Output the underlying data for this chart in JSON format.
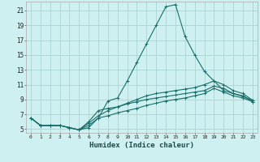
{
  "xlabel": "Humidex (Indice chaleur)",
  "bg_color": "#cff0f0",
  "grid_color": "#aad4d4",
  "line_color": "#1a6e6a",
  "xlim": [
    -0.5,
    23.5
  ],
  "ylim": [
    4.5,
    22.2
  ],
  "xticks": [
    0,
    1,
    2,
    3,
    4,
    5,
    6,
    7,
    8,
    9,
    10,
    11,
    12,
    13,
    14,
    15,
    16,
    17,
    18,
    19,
    20,
    21,
    22,
    23
  ],
  "yticks": [
    5,
    7,
    9,
    11,
    13,
    15,
    17,
    19,
    21
  ],
  "series": [
    [
      6.5,
      5.5,
      5.5,
      5.5,
      5.2,
      4.9,
      5.2,
      6.5,
      8.8,
      9.2,
      11.5,
      14.0,
      16.5,
      19.0,
      21.5,
      21.8,
      17.5,
      15.0,
      12.8,
      11.5,
      10.2,
      9.8,
      9.5,
      8.7
    ],
    [
      6.5,
      5.5,
      5.5,
      5.5,
      5.2,
      4.9,
      5.5,
      6.5,
      6.8,
      7.2,
      7.5,
      7.8,
      8.2,
      8.5,
      8.8,
      9.0,
      9.2,
      9.5,
      9.8,
      10.5,
      10.0,
      9.5,
      9.2,
      8.7
    ],
    [
      6.5,
      5.5,
      5.5,
      5.5,
      5.2,
      4.9,
      5.8,
      6.8,
      7.5,
      8.0,
      8.5,
      9.0,
      9.5,
      9.8,
      10.0,
      10.2,
      10.4,
      10.6,
      11.0,
      11.5,
      11.0,
      10.2,
      9.8,
      8.9
    ],
    [
      6.5,
      5.5,
      5.5,
      5.5,
      5.2,
      4.9,
      6.0,
      7.5,
      7.8,
      8.0,
      8.4,
      8.7,
      9.0,
      9.2,
      9.4,
      9.6,
      9.8,
      10.0,
      10.2,
      10.8,
      10.5,
      9.8,
      9.4,
      8.9
    ]
  ]
}
